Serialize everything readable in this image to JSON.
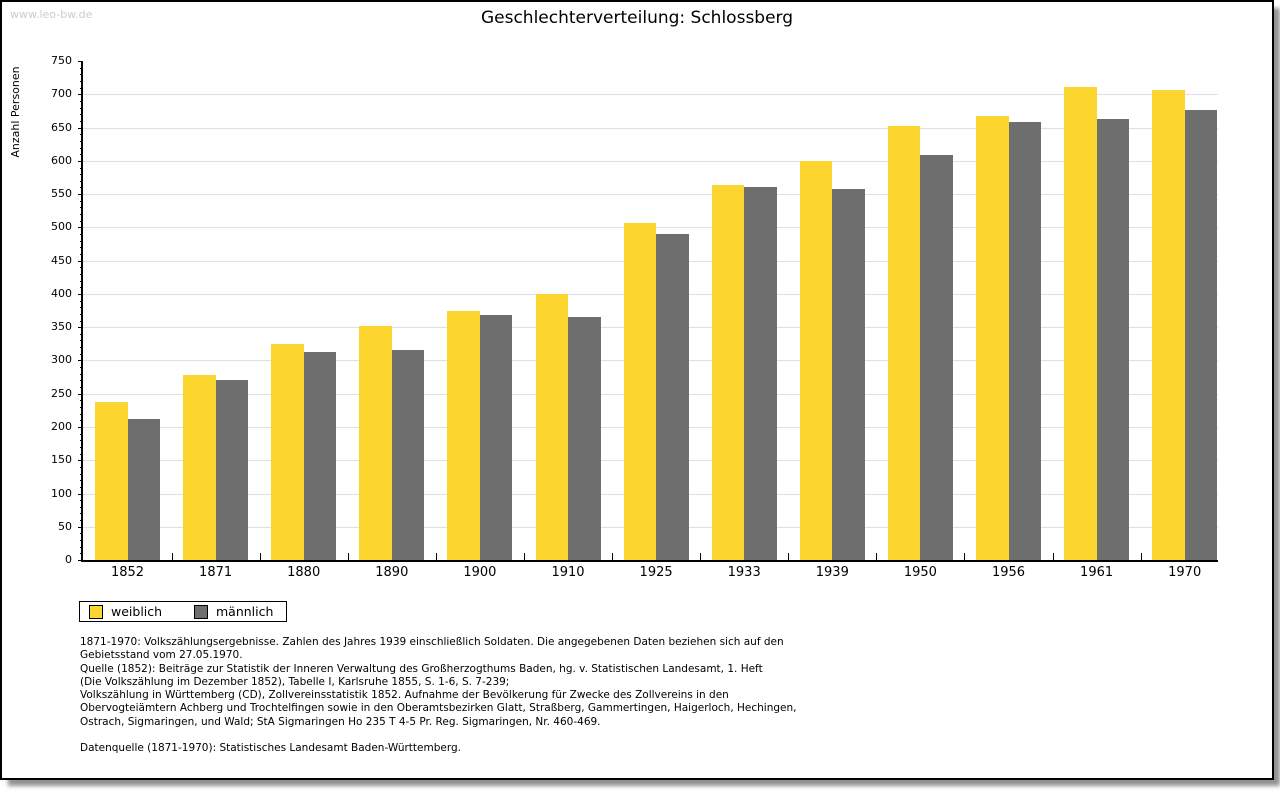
{
  "watermark": "www.leo-bw.de",
  "title": "Geschlechterverteilung: Schlossberg",
  "chart_data": {
    "type": "bar",
    "title": "Geschlechterverteilung: Schlossberg",
    "xlabel": "",
    "ylabel": "Anzahl Personen",
    "ylim": [
      0,
      750
    ],
    "ytick_step": 50,
    "yminor_step": 10,
    "grid": true,
    "legend_position": "bottom-left",
    "categories": [
      "1852",
      "1871",
      "1880",
      "1890",
      "1900",
      "1910",
      "1925",
      "1933",
      "1939",
      "1950",
      "1956",
      "1961",
      "1970"
    ],
    "series": [
      {
        "name": "weiblich",
        "color": "#FCD52E",
        "values": [
          238,
          278,
          325,
          352,
          374,
          400,
          507,
          564,
          600,
          652,
          667,
          711,
          706
        ]
      },
      {
        "name": "männlich",
        "color": "#6E6E6E",
        "values": [
          212,
          271,
          312,
          315,
          368,
          366,
          490,
          561,
          558,
          609,
          658,
          663,
          677
        ]
      }
    ]
  },
  "legend": {
    "items": [
      {
        "label": "weiblich",
        "color": "#FCD52E"
      },
      {
        "label": "männlich",
        "color": "#6E6E6E"
      }
    ]
  },
  "footer": {
    "lines": [
      "1871-1970: Volkszählungsergebnisse. Zahlen des Jahres 1939 einschließlich Soldaten. Die angegebenen Daten beziehen sich auf den",
      "Gebietsstand vom 27.05.1970.",
      "Quelle (1852): Beiträge zur Statistik der Inneren Verwaltung des Großherzogthums Baden, hg. v. Statistischen Landesamt, 1. Heft",
      "(Die Volkszählung im Dezember 1852), Tabelle I, Karlsruhe 1855, S. 1-6, S. 7-239;",
      "Volkszählung in Württemberg (CD), Zollvereinsstatistik 1852. Aufnahme der Bevölkerung für Zwecke des Zollvereins in den",
      "Obervogteiämtern Achberg und Trochtelfingen sowie in den Oberamtsbezirken Glatt, Straßberg, Gammertingen, Haigerloch, Hechingen,",
      "Ostrach, Sigmaringen, und Wald; StA Sigmaringen Ho 235 T 4-5 Pr. Reg. Sigmaringen, Nr. 460-469."
    ],
    "datasource": "Datenquelle (1871-1970): Statistisches Landesamt Baden-Württemberg."
  }
}
